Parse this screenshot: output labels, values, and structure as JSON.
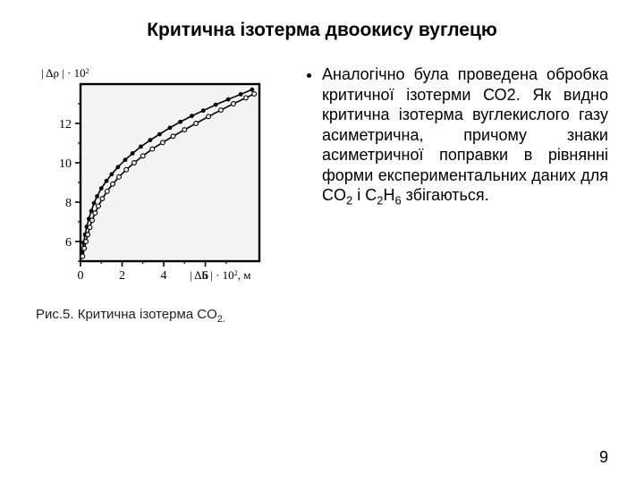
{
  "title": "Критична ізотерма двоокису вуглецю",
  "caption_prefix": "Рис.5. Критична ізотерма CO",
  "caption_sub": "2.",
  "paragraph_parts": {
    "p1": "Аналогічно була проведена обробка критичної ізотерми СО2. Як видно критична ізотерма вуглекислого газу асиметрична, причому знаки асиметричної поправки в рівнянні форми експериментальних даних для CO",
    "s1": "2",
    "p2": " і C",
    "s2": "2",
    "p3": "H",
    "s3": "6",
    "p4": " збігаються."
  },
  "page_number": "9",
  "chart": {
    "type": "scatter-line",
    "plot_background": "#f4f4f4",
    "page_background": "#ffffff",
    "axis_color": "#000000",
    "axis_line_width": 2.4,
    "tick_length": 6,
    "tick_minor_length": 3,
    "tick_font_size": 14,
    "xlim": [
      0,
      8.6
    ],
    "ylim": [
      5,
      14
    ],
    "x_ticks": [
      0,
      2,
      4,
      6
    ],
    "y_ticks": [
      6,
      8,
      10,
      12
    ],
    "x_minor_ticks": [
      1,
      3,
      5,
      7
    ],
    "y_minor_ticks": [
      5,
      7,
      9,
      11,
      13
    ],
    "y_axis_label_parts": {
      "a": "| Δρ | · 10",
      "sup": "2"
    },
    "x_axis_label_parts": {
      "a": "| Δh | · 10",
      "sup": "2",
      "unit": ", м"
    },
    "label_font_size": 13,
    "series": [
      {
        "name": "upper-curve-filled",
        "marker": "filled-circle",
        "marker_radius": 2.4,
        "marker_color": "#000000",
        "show_line": true,
        "line_width": 1.6,
        "line_color": "#000000",
        "points": [
          [
            0.08,
            5.45
          ],
          [
            0.15,
            5.95
          ],
          [
            0.22,
            6.35
          ],
          [
            0.3,
            6.75
          ],
          [
            0.4,
            7.15
          ],
          [
            0.52,
            7.55
          ],
          [
            0.65,
            7.95
          ],
          [
            0.8,
            8.3
          ],
          [
            1.0,
            8.7
          ],
          [
            1.25,
            9.08
          ],
          [
            1.5,
            9.42
          ],
          [
            1.8,
            9.78
          ],
          [
            2.15,
            10.15
          ],
          [
            2.5,
            10.48
          ],
          [
            2.9,
            10.82
          ],
          [
            3.35,
            11.15
          ],
          [
            3.8,
            11.45
          ],
          [
            4.3,
            11.78
          ],
          [
            4.8,
            12.08
          ],
          [
            5.35,
            12.38
          ],
          [
            5.9,
            12.65
          ],
          [
            6.5,
            12.95
          ],
          [
            7.1,
            13.22
          ],
          [
            7.7,
            13.48
          ],
          [
            8.25,
            13.72
          ]
        ]
      },
      {
        "name": "lower-curve-open",
        "marker": "open-circle",
        "marker_radius": 2.4,
        "marker_color": "#000000",
        "marker_fill": "#f4f4f4",
        "marker_stroke_width": 1.1,
        "show_line": true,
        "line_width": 1.6,
        "line_color": "#000000",
        "points": [
          [
            0.1,
            5.25
          ],
          [
            0.18,
            5.65
          ],
          [
            0.26,
            6.0
          ],
          [
            0.35,
            6.35
          ],
          [
            0.45,
            6.72
          ],
          [
            0.56,
            7.08
          ],
          [
            0.7,
            7.45
          ],
          [
            0.86,
            7.8
          ],
          [
            1.05,
            8.18
          ],
          [
            1.28,
            8.55
          ],
          [
            1.55,
            8.92
          ],
          [
            1.85,
            9.28
          ],
          [
            2.2,
            9.65
          ],
          [
            2.58,
            10.0
          ],
          [
            3.0,
            10.35
          ],
          [
            3.45,
            10.7
          ],
          [
            3.95,
            11.03
          ],
          [
            4.45,
            11.35
          ],
          [
            5.0,
            11.68
          ],
          [
            5.55,
            12.0
          ],
          [
            6.15,
            12.35
          ],
          [
            6.75,
            12.68
          ],
          [
            7.35,
            13.0
          ],
          [
            7.95,
            13.3
          ],
          [
            8.35,
            13.5
          ]
        ]
      }
    ]
  }
}
